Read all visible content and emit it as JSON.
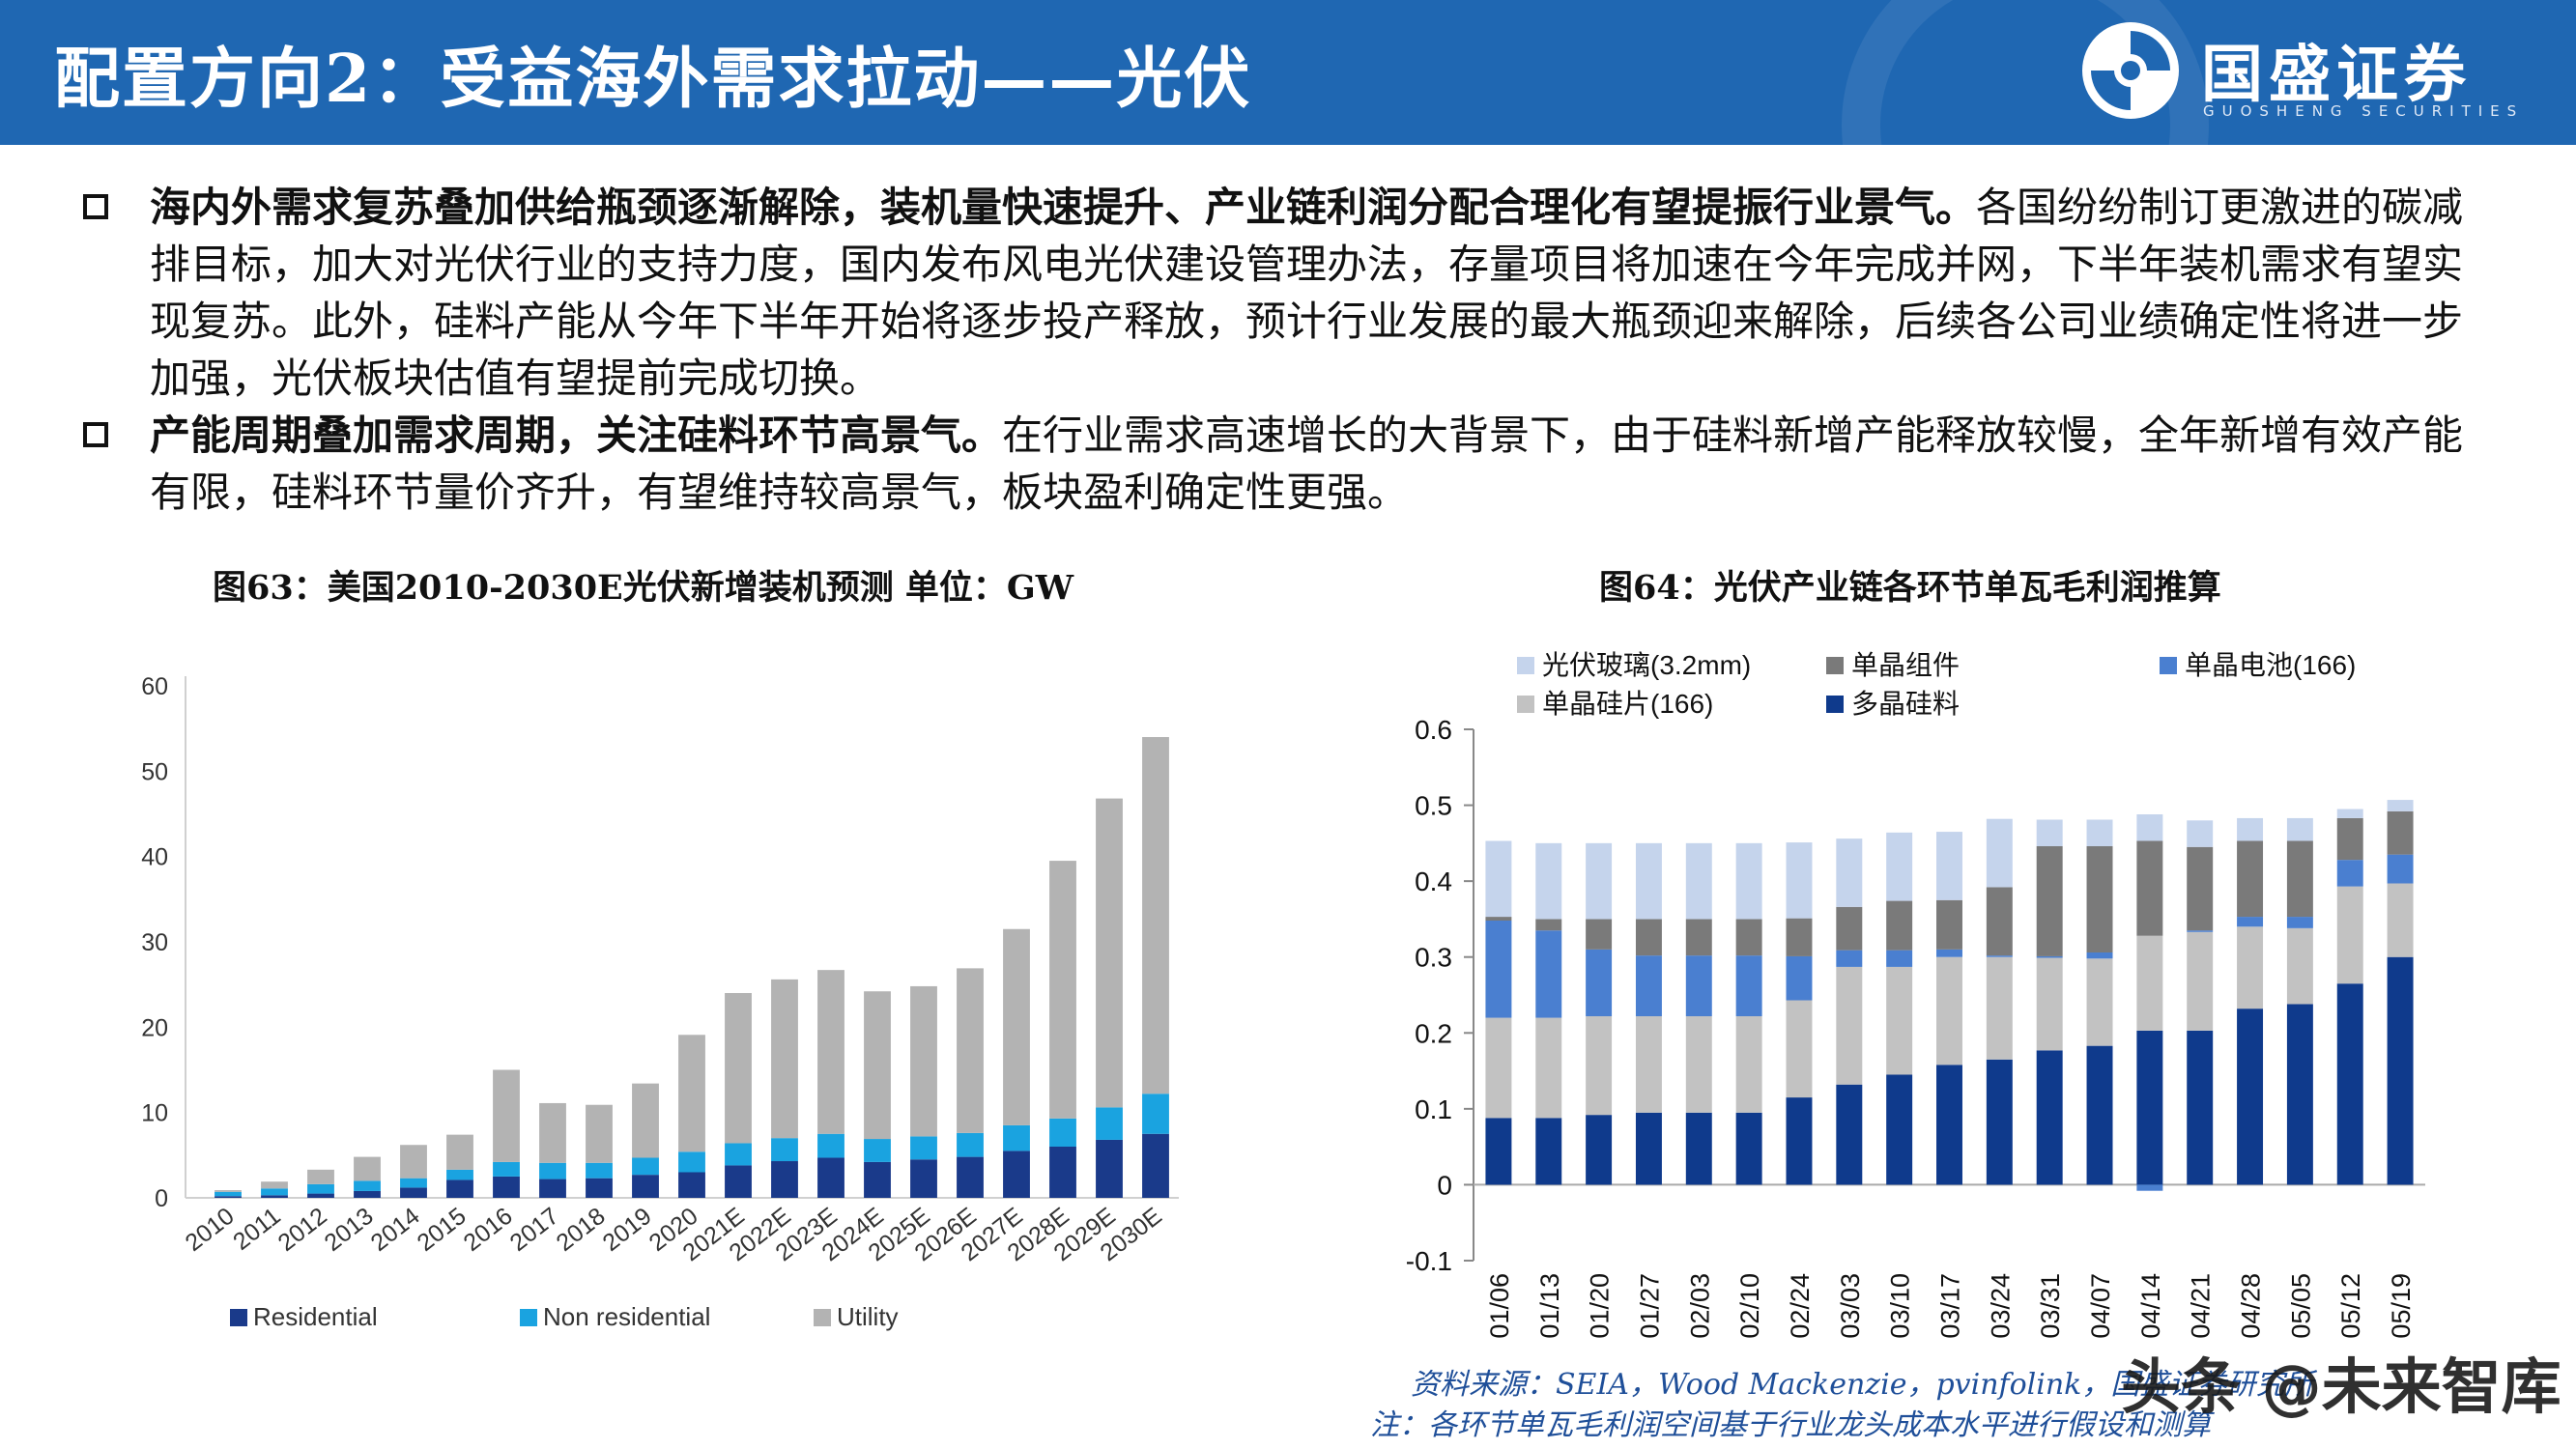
{
  "header": {
    "title": "配置方向2：受益海外需求拉动——光伏",
    "logo_name": "国盛证券",
    "logo_sub": "GUOSHENG SECURITIES",
    "bg_color": "#1f67b2"
  },
  "bullets": [
    {
      "lead": "海内外需求复苏叠加供给瓶颈逐渐解除，装机量快速提升、产业链利润分配合理化有望提振行业景气。",
      "body": "各国纷纷制订更激进的碳减排目标，加大对光伏行业的支持力度，国内发布风电光伏建设管理办法，存量项目将加速在今年完成并网，下半年装机需求有望实现复苏。此外，硅料产能从今年下半年开始将逐步投产释放，预计行业发展的最大瓶颈迎来解除，后续各公司业绩确定性将进一步加强，光伏板块估值有望提前完成切换。"
    },
    {
      "lead": "产能周期叠加需求周期，关注硅料环节高景气。",
      "body": "在行业需求高速增长的大背景下，由于硅料新增产能释放较慢，全年新增有效产能有限，硅料环节量价齐升，有望维持较高景气，板块盈利确定性更强。"
    }
  ],
  "fig1_title": "图63：美国2010-2030E光伏新增装机预测 单位：GW",
  "fig2_title": "图64：光伏产业链各环节单瓦毛利润推算",
  "source_line": "资料来源：SEIA，Wood Mackenzie，pvinfolink，国盛证券研究所",
  "note_line": "注：各环节单瓦毛利润空间基于行业龙头成本水平进行假设和测算",
  "watermark": "头条 @未来智库",
  "chart_data": [
    {
      "type": "bar",
      "stacked": true,
      "title": "图63：美国2010-2030E光伏新增装机预测 单位：GW",
      "categories": [
        "2010",
        "2011",
        "2012",
        "2013",
        "2014",
        "2015",
        "2016",
        "2017",
        "2018",
        "2019",
        "2020",
        "2021E",
        "2022E",
        "2023E",
        "2024E",
        "2025E",
        "2026E",
        "2027E",
        "2028E",
        "2029E",
        "2030E"
      ],
      "ylim": [
        0,
        60
      ],
      "yticks": [
        "0",
        "10",
        "20",
        "30",
        "40",
        "50",
        "60"
      ],
      "legend_position": "bottom",
      "grid": false,
      "series": [
        {
          "name": "Residential",
          "color": "#1a3a8a",
          "values": [
            0.2,
            0.3,
            0.5,
            0.8,
            1.2,
            2.1,
            2.5,
            2.2,
            2.3,
            2.7,
            3.0,
            3.8,
            4.3,
            4.7,
            4.2,
            4.5,
            4.8,
            5.5,
            6.0,
            6.8,
            7.5
          ]
        },
        {
          "name": "Non residential",
          "color": "#1aa3e0",
          "values": [
            0.5,
            0.8,
            1.1,
            1.2,
            1.1,
            1.2,
            1.7,
            1.9,
            1.8,
            2.0,
            2.4,
            2.6,
            2.7,
            2.8,
            2.7,
            2.7,
            2.8,
            3.0,
            3.3,
            3.8,
            4.7
          ]
        },
        {
          "name": "Utility",
          "color": "#b3b3b3",
          "values": [
            0.2,
            0.8,
            1.7,
            2.8,
            3.9,
            4.1,
            10.8,
            7.0,
            6.8,
            8.7,
            13.7,
            17.6,
            18.6,
            19.2,
            17.3,
            17.6,
            19.3,
            23.0,
            30.2,
            36.2,
            41.8
          ]
        }
      ]
    },
    {
      "type": "bar",
      "stacked": true,
      "title": "图64：光伏产业链各环节单瓦毛利润推算",
      "categories": [
        "21/01/06",
        "21/01/13",
        "21/01/20",
        "21/01/27",
        "21/02/03",
        "21/02/10",
        "21/02/24",
        "21/03/03",
        "21/03/10",
        "21/03/17",
        "21/03/24",
        "21/03/31",
        "21/04/07",
        "21/04/14",
        "21/04/21",
        "21/04/28",
        "21/05/05",
        "21/05/12",
        "21/05/19"
      ],
      "ylim": [
        -0.1,
        0.6
      ],
      "yticks": [
        "-0.1",
        "0",
        "0.1",
        "0.2",
        "0.3",
        "0.4",
        "0.5",
        "0.6"
      ],
      "legend_position": "top",
      "grid": false,
      "series": [
        {
          "name": "多晶硅料",
          "color": "#0f3a8c",
          "values": [
            0.088,
            0.088,
            0.092,
            0.095,
            0.095,
            0.095,
            0.115,
            0.132,
            0.145,
            0.158,
            0.165,
            0.177,
            0.183,
            0.203,
            0.203,
            0.232,
            0.238,
            0.265,
            0.3
          ]
        },
        {
          "name": "单晶硅片(166)",
          "color": "#c2c2c2",
          "values": [
            0.132,
            0.132,
            0.13,
            0.127,
            0.127,
            0.127,
            0.128,
            0.155,
            0.142,
            0.142,
            0.135,
            0.122,
            0.115,
            0.125,
            0.13,
            0.108,
            0.1,
            0.128,
            0.097
          ]
        },
        {
          "name": "单晶电池(166)",
          "color": "#4a7fd0",
          "values": [
            0.128,
            0.115,
            0.088,
            0.08,
            0.08,
            0.08,
            0.058,
            0.022,
            0.022,
            0.01,
            0.002,
            0.002,
            0.008,
            -0.008,
            0.002,
            0.013,
            0.015,
            0.035,
            0.038
          ]
        },
        {
          "name": "单晶组件",
          "color": "#7a7a7a",
          "values": [
            0.005,
            0.015,
            0.04,
            0.048,
            0.048,
            0.048,
            0.05,
            0.057,
            0.065,
            0.065,
            0.09,
            0.145,
            0.14,
            0.125,
            0.11,
            0.1,
            0.1,
            0.055,
            0.057
          ]
        },
        {
          "name": "光伏玻璃(3.2mm)",
          "color": "#c5d4ec",
          "values": [
            0.1,
            0.1,
            0.1,
            0.1,
            0.1,
            0.1,
            0.1,
            0.09,
            0.09,
            0.09,
            0.09,
            0.035,
            0.035,
            0.035,
            0.035,
            0.03,
            0.03,
            0.012,
            0.015
          ]
        }
      ]
    }
  ]
}
